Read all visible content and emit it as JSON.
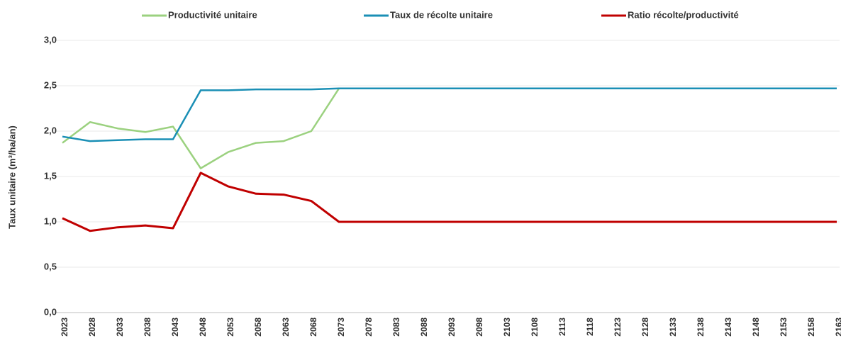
{
  "chart_data": {
    "type": "line",
    "y_label": "Taux unitaire (m³/ha/an)",
    "categories": [
      "2023",
      "2028",
      "2033",
      "2038",
      "2043",
      "2048",
      "2053",
      "2058",
      "2063",
      "2068",
      "2073",
      "2078",
      "2083",
      "2088",
      "2093",
      "2098",
      "2103",
      "2108",
      "2113",
      "2118",
      "2123",
      "2128",
      "2133",
      "2138",
      "2143",
      "2148",
      "2153",
      "2158",
      "2163"
    ],
    "series": [
      {
        "name": "Productivité unitaire",
        "color": "#9bd17f",
        "values": [
          1.87,
          2.1,
          2.03,
          1.99,
          2.05,
          1.59,
          1.77,
          1.87,
          1.89,
          2.0,
          2.47,
          2.47,
          2.47,
          2.47,
          2.47,
          2.47,
          2.47,
          2.47,
          2.47,
          2.47,
          2.47,
          2.47,
          2.47,
          2.47,
          2.47,
          2.47,
          2.47,
          2.47,
          2.47
        ]
      },
      {
        "name": "Taux de récolte unitaire",
        "color": "#1a8fb5",
        "values": [
          1.94,
          1.89,
          1.9,
          1.91,
          1.91,
          2.45,
          2.45,
          2.46,
          2.46,
          2.46,
          2.47,
          2.47,
          2.47,
          2.47,
          2.47,
          2.47,
          2.47,
          2.47,
          2.47,
          2.47,
          2.47,
          2.47,
          2.47,
          2.47,
          2.47,
          2.47,
          2.47,
          2.47,
          2.47
        ]
      },
      {
        "name": "Ratio récolte/productivité",
        "color": "#c00000",
        "values": [
          1.04,
          0.9,
          0.94,
          0.96,
          0.93,
          1.54,
          1.39,
          1.31,
          1.3,
          1.23,
          1.0,
          1.0,
          1.0,
          1.0,
          1.0,
          1.0,
          1.0,
          1.0,
          1.0,
          1.0,
          1.0,
          1.0,
          1.0,
          1.0,
          1.0,
          1.0,
          1.0,
          1.0,
          1.0
        ]
      }
    ],
    "ylim": [
      0,
      3
    ],
    "yticks": [
      {
        "value": 0,
        "label": "0,0"
      },
      {
        "value": 0.5,
        "label": "0,5"
      },
      {
        "value": 1,
        "label": "1,0"
      },
      {
        "value": 1.5,
        "label": "1,5"
      },
      {
        "value": 2,
        "label": "2,0"
      },
      {
        "value": 2.5,
        "label": "2,5"
      },
      {
        "value": 3,
        "label": "3,0"
      }
    ],
    "grid": true,
    "legend": "top"
  }
}
